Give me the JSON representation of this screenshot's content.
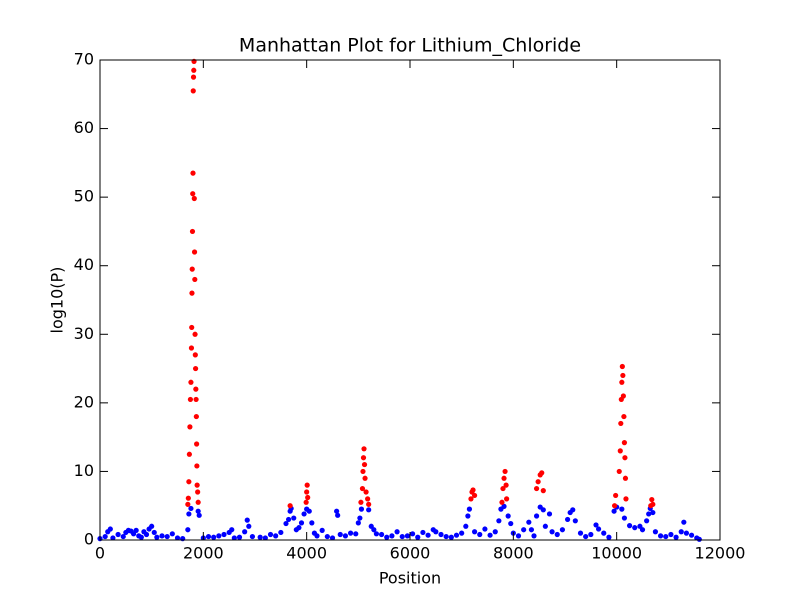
{
  "chart_data": {
    "type": "scatter",
    "title": "Manhattan Plot for Lithium_Chloride",
    "x_label": "Position",
    "y_label": "log10(P)",
    "xlim": [
      0,
      12000
    ],
    "xticks": [
      0,
      2000,
      4000,
      6000,
      8000,
      10000,
      12000
    ],
    "ylim": [
      0,
      70
    ],
    "yticks": [
      0,
      10,
      20,
      30,
      40,
      50,
      60,
      70
    ],
    "series": [
      {
        "color": "#0000ff",
        "x": [
          0,
          100,
          150,
          200,
          250,
          350,
          450,
          500,
          550,
          600,
          650,
          700,
          750,
          800,
          850,
          900,
          950,
          1000,
          1050,
          1100,
          1200,
          1300,
          1400,
          1500,
          1600,
          1700,
          1720,
          1760,
          1900,
          1920,
          2000,
          2100,
          2200,
          2300,
          2400,
          2500,
          2550,
          2600,
          2700,
          2800,
          2850,
          2880,
          2950,
          3100,
          3200,
          3300,
          3400,
          3500,
          3600,
          3650,
          3680,
          3700,
          3750,
          3800,
          3850,
          3900,
          3950,
          4000,
          4050,
          4100,
          4150,
          4200,
          4300,
          4400,
          4500,
          4580,
          4600,
          4650,
          4750,
          4850,
          4950,
          5000,
          5030,
          5060,
          5200,
          5250,
          5300,
          5350,
          5450,
          5550,
          5650,
          5750,
          5850,
          5950,
          6050,
          6150,
          6250,
          6350,
          6450,
          6500,
          6600,
          6700,
          6800,
          6900,
          7000,
          7080,
          7120,
          7150,
          7250,
          7350,
          7450,
          7550,
          7650,
          7720,
          7760,
          7820,
          7900,
          7950,
          8000,
          8100,
          8200,
          8300,
          8350,
          8400,
          8450,
          8520,
          8580,
          8620,
          8700,
          8750,
          8850,
          8950,
          9050,
          9100,
          9150,
          9200,
          9300,
          9400,
          9500,
          9600,
          9650,
          9750,
          9850,
          9950,
          10000,
          10100,
          10150,
          10250,
          10350,
          10450,
          10500,
          10580,
          10620,
          10650,
          10700,
          10750,
          10850,
          10950,
          11050,
          11150,
          11250,
          11300,
          11350,
          11450,
          11550,
          11600
        ],
        "values": [
          0.2,
          0.5,
          1.2,
          1.6,
          0.3,
          0.8,
          0.5,
          1.1,
          1.4,
          1.3,
          0.9,
          1.4,
          0.6,
          0.4,
          1.2,
          0.8,
          1.6,
          2.0,
          1.1,
          0.4,
          0.6,
          0.5,
          0.9,
          0.3,
          0.2,
          1.5,
          3.8,
          4.6,
          4.2,
          3.6,
          0.3,
          0.5,
          0.4,
          0.6,
          0.8,
          1.1,
          1.5,
          0.3,
          0.4,
          1.2,
          2.9,
          2.0,
          0.5,
          0.4,
          0.3,
          0.8,
          0.6,
          1.1,
          2.4,
          3.0,
          4.2,
          4.6,
          3.2,
          1.5,
          1.8,
          2.5,
          3.8,
          4.5,
          4.2,
          2.5,
          1.0,
          0.6,
          1.4,
          0.5,
          0.3,
          4.2,
          3.6,
          0.8,
          0.6,
          1.0,
          0.9,
          2.5,
          3.2,
          4.5,
          4.4,
          2.0,
          1.5,
          0.9,
          0.8,
          0.4,
          0.6,
          1.2,
          0.5,
          0.6,
          0.9,
          0.4,
          1.1,
          0.7,
          1.5,
          1.2,
          0.8,
          0.5,
          0.4,
          0.7,
          1.0,
          2.0,
          3.5,
          4.5,
          1.2,
          0.8,
          1.6,
          0.7,
          1.2,
          2.8,
          4.5,
          4.9,
          3.5,
          2.4,
          1.0,
          0.6,
          1.5,
          2.6,
          1.5,
          0.6,
          3.5,
          4.8,
          4.4,
          2.0,
          3.8,
          1.2,
          0.8,
          1.5,
          3.0,
          4.0,
          4.4,
          2.8,
          1.0,
          0.5,
          0.8,
          2.2,
          1.6,
          1.0,
          0.4,
          4.2,
          4.8,
          4.5,
          3.2,
          2.1,
          1.8,
          2.0,
          1.5,
          2.8,
          3.8,
          4.6,
          4.0,
          1.2,
          0.6,
          0.5,
          0.8,
          0.4,
          1.2,
          2.6,
          1.0,
          0.7,
          0.3,
          0.1
        ]
      },
      {
        "color": "#ff0000",
        "x": [
          1700,
          1710,
          1720,
          1730,
          1740,
          1750,
          1760,
          1770,
          1775,
          1780,
          1785,
          1790,
          1795,
          1800,
          1805,
          1810,
          1815,
          1820,
          1825,
          1830,
          1835,
          1840,
          1845,
          1850,
          1855,
          1860,
          1865,
          1870,
          1875,
          1880,
          1890,
          1900,
          3680,
          3990,
          4000,
          4010,
          4020,
          5050,
          5080,
          5090,
          5100,
          5110,
          5120,
          5130,
          5150,
          5180,
          5200,
          7180,
          7200,
          7220,
          7250,
          7780,
          7800,
          7820,
          7840,
          7860,
          7870,
          8450,
          8480,
          8520,
          8550,
          8580,
          9960,
          9980,
          10050,
          10070,
          10080,
          10090,
          10100,
          10110,
          10120,
          10130,
          10140,
          10150,
          10160,
          10170,
          10180,
          10660,
          10680,
          10700
        ],
        "values": [
          5.2,
          6.1,
          8.5,
          12.5,
          16.5,
          20.5,
          23.0,
          28.0,
          31.0,
          36.0,
          39.5,
          45.0,
          50.5,
          53.5,
          65.5,
          67.5,
          68.5,
          69.8,
          49.8,
          42.0,
          38.0,
          30.0,
          27.0,
          25.0,
          22.0,
          20.5,
          18.0,
          14.0,
          10.8,
          8.0,
          7.0,
          5.5,
          5.0,
          5.5,
          7.0,
          8.0,
          6.2,
          5.5,
          7.5,
          10.0,
          12.0,
          13.3,
          11.0,
          9.0,
          7.0,
          6.0,
          5.2,
          6.0,
          7.0,
          7.3,
          6.5,
          5.5,
          7.5,
          9.0,
          10.0,
          8.0,
          6.0,
          7.5,
          8.5,
          9.5,
          9.8,
          7.2,
          5.0,
          6.5,
          10.0,
          13.0,
          17.0,
          20.5,
          23.0,
          25.3,
          24.0,
          21.0,
          18.0,
          14.2,
          12.0,
          9.0,
          6.0,
          5.0,
          5.9,
          5.2
        ]
      }
    ]
  }
}
